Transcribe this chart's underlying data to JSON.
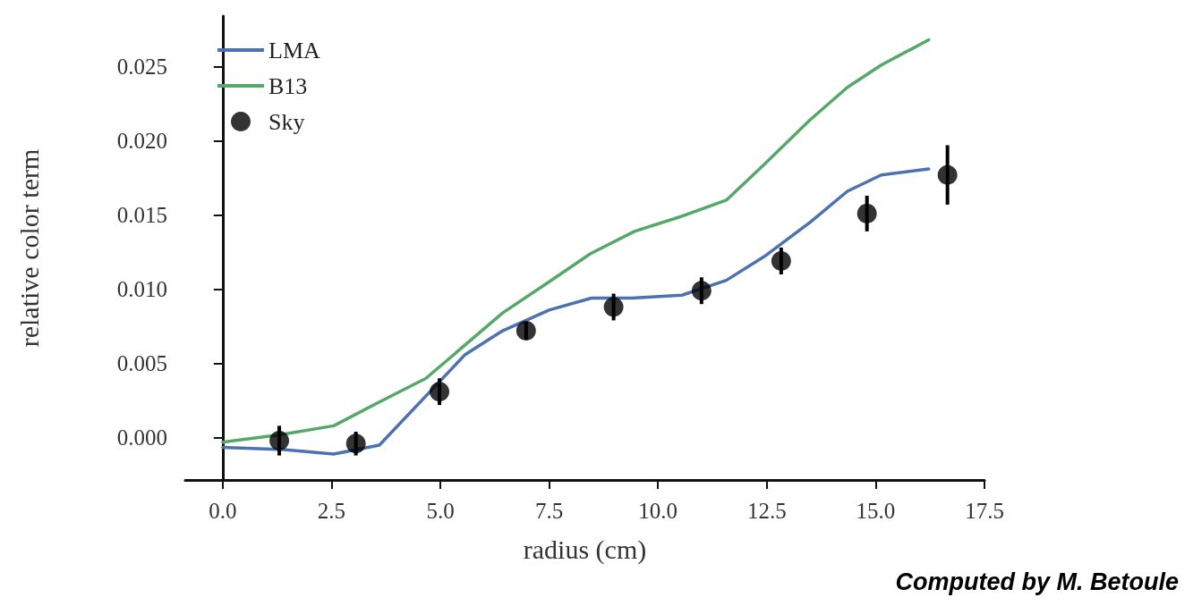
{
  "chart_data": {
    "type": "line",
    "xlabel": "radius (cm)",
    "ylabel": "relative color term",
    "xlim": [
      -0.86,
      17.5
    ],
    "ylim": [
      -0.00285,
      0.0284
    ],
    "xticks": [
      {
        "value": 0,
        "label": "0.0"
      },
      {
        "value": 2.5,
        "label": "2.5"
      },
      {
        "value": 5,
        "label": "5.0"
      },
      {
        "value": 7.5,
        "label": "7.5"
      },
      {
        "value": 10,
        "label": "10.0"
      },
      {
        "value": 12.5,
        "label": "12.5"
      },
      {
        "value": 15,
        "label": "15.0"
      },
      {
        "value": 17.5,
        "label": "17.5"
      }
    ],
    "yticks": [
      {
        "value": 0,
        "label": "0.000"
      },
      {
        "value": 0.005,
        "label": "0.005"
      },
      {
        "value": 0.01,
        "label": "0.010"
      },
      {
        "value": 0.015,
        "label": "0.015"
      },
      {
        "value": 0.02,
        "label": "0.020"
      },
      {
        "value": 0.025,
        "label": "0.025"
      }
    ],
    "legend": "top left",
    "line_style": "solid",
    "series": [
      {
        "name": "LMA",
        "color": "#4c72b0",
        "marker": "none",
        "x": [
          0,
          1.4,
          2.55,
          3.6,
          5.57,
          6.43,
          7.5,
          8.47,
          9.4,
          10.55,
          11.57,
          12.44,
          13.49,
          14.35,
          15.13,
          16.22
        ],
        "values": [
          -0.00065,
          -0.0008,
          -0.0011,
          -0.0005,
          0.0056,
          0.0072,
          0.0086,
          0.0094,
          0.0094,
          0.0096,
          0.0106,
          0.0122,
          0.0145,
          0.0166,
          0.0177,
          0.0181
        ]
      },
      {
        "name": "B13",
        "color": "#55a868",
        "marker": "none",
        "x": [
          0,
          1.34,
          2.55,
          3.6,
          4.67,
          6.43,
          7.5,
          8.45,
          9.46,
          10.53,
          11.57,
          12.44,
          13.49,
          14.35,
          15.13,
          16.22
        ],
        "values": [
          -0.0003,
          0.0002,
          0.0008,
          0.0024,
          0.004,
          0.0084,
          0.0105,
          0.0124,
          0.0139,
          0.0149,
          0.016,
          0.0184,
          0.0214,
          0.0236,
          0.0251,
          0.0268
        ]
      },
      {
        "name": "Sky",
        "type": "scatter",
        "color": "#000000",
        "marker": "circle",
        "x": [
          1.3,
          3.06,
          4.98,
          6.97,
          8.98,
          11.0,
          12.83,
          14.8,
          16.65
        ],
        "values": [
          -0.0002,
          -0.0004,
          0.0031,
          0.0072,
          0.0088,
          0.0099,
          0.0119,
          0.0151,
          0.0177
        ],
        "errors": [
          0.001,
          0.0008,
          0.0009,
          0.0006,
          0.0009,
          0.0009,
          0.0009,
          0.0012,
          0.002
        ]
      }
    ],
    "annotations": [
      "Computed by M. Betoule"
    ]
  }
}
